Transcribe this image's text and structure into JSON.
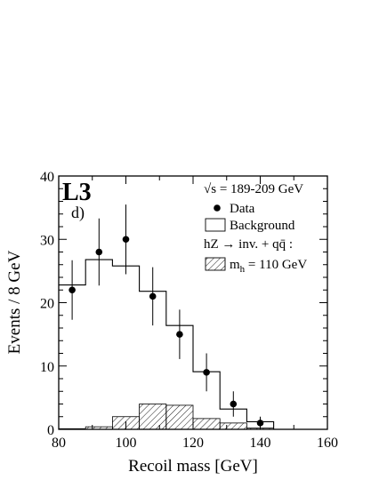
{
  "chart_data": {
    "type": "histogram",
    "experiment_label": "L3",
    "panel_label": "d)",
    "xlabel": "Recoil mass  [GeV]",
    "ylabel": "Events / 8 GeV",
    "xlim": [
      80,
      160
    ],
    "ylim": [
      0,
      40
    ],
    "x_ticks": [
      80,
      100,
      120,
      140,
      160
    ],
    "y_ticks": [
      0,
      10,
      20,
      30,
      40
    ],
    "legend": {
      "energy": "√s = 189-209 GeV",
      "data": "Data",
      "background": "Background",
      "signal_header": "hZ → inv. + qq̄ :",
      "signal": "m_h = 110 GeV",
      "placement": "top-right"
    },
    "background_histogram": {
      "name": "Background",
      "bin_edges": [
        80,
        88,
        96,
        104,
        112,
        120,
        128,
        136,
        144
      ],
      "values": [
        22.8,
        26.8,
        25.8,
        21.8,
        16.4,
        9.1,
        3.2,
        1.2
      ]
    },
    "signal_histogram": {
      "name": "m_h = 110 GeV",
      "bin_edges": [
        80,
        88,
        96,
        104,
        112,
        120,
        128,
        136,
        144
      ],
      "values": [
        0.1,
        0.4,
        2.0,
        4.0,
        3.8,
        1.7,
        1.0,
        0.2
      ]
    },
    "data_points": {
      "name": "Data",
      "x": [
        84,
        92,
        100,
        108,
        116,
        124,
        132,
        140
      ],
      "y": [
        22,
        28,
        30,
        21,
        15,
        9,
        4,
        1
      ],
      "err_low": [
        4.7,
        5.3,
        5.5,
        4.6,
        3.9,
        3.0,
        2.0,
        1.0
      ],
      "err_high": [
        4.7,
        5.3,
        5.5,
        4.6,
        3.9,
        3.0,
        2.0,
        1.0
      ]
    }
  }
}
